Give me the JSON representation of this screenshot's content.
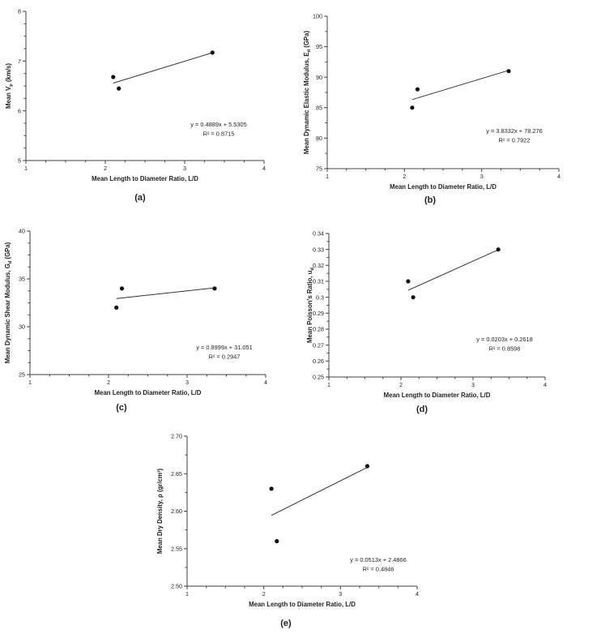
{
  "figure": {
    "background": "#ffffff",
    "axis_color": "#404040",
    "point_color": "#111111",
    "trendline_color": "#333333"
  },
  "chart_data": [
    {
      "id": "a",
      "type": "scatter",
      "panel_label": "(a)",
      "xlabel": "Mean Length to Diameter Ratio, L/D",
      "ylabel": [
        {
          "text": "Mean V"
        },
        {
          "text": "p",
          "style": "sub"
        },
        {
          "text": " (km/s)"
        }
      ],
      "xlim": [
        1,
        4
      ],
      "ylim": [
        5,
        8
      ],
      "x_ticks": {
        "major": 1,
        "minor": 0.25,
        "labels": [
          "1",
          "2",
          "3",
          "4"
        ]
      },
      "y_ticks": {
        "major": 1,
        "minor": 0.25,
        "labels": [
          "5",
          "6",
          "7",
          "8"
        ]
      },
      "points": [
        [
          2.1,
          6.68
        ],
        [
          2.17,
          6.45
        ],
        [
          3.35,
          7.17
        ]
      ],
      "trendline": {
        "slope": 0.4889,
        "intercept": 5.5305,
        "x1": 2.1,
        "x2": 3.35
      },
      "equation": "y = 0.4889x + 5.5305",
      "r2": "R² = 0.8715",
      "grid": false,
      "legend": false
    },
    {
      "id": "b",
      "type": "scatter",
      "panel_label": "(b)",
      "xlabel": "Mean Length to Diameter Ratio, L/D",
      "ylabel": [
        {
          "text": "Mean Dynamic Elastic Modulus, E"
        },
        {
          "text": "d",
          "style": "sub"
        },
        {
          "text": " (GPa)"
        }
      ],
      "xlim": [
        1,
        4
      ],
      "ylim": [
        75,
        100
      ],
      "x_ticks": {
        "major": 1,
        "minor": 0.25,
        "labels": [
          "1",
          "2",
          "3",
          "4"
        ]
      },
      "y_ticks": {
        "major": 5,
        "minor": 2.5,
        "labels": [
          "75",
          "80",
          "85",
          "90",
          "95",
          "100"
        ]
      },
      "points": [
        [
          2.1,
          85
        ],
        [
          2.17,
          88
        ],
        [
          3.35,
          91
        ]
      ],
      "trendline": {
        "slope": 3.8332,
        "intercept": 78.276,
        "x1": 2.1,
        "x2": 3.35
      },
      "equation": "y = 3.8332x + 78.276",
      "r2": "R² = 0.7922",
      "grid": false,
      "legend": false
    },
    {
      "id": "c",
      "type": "scatter",
      "panel_label": "(c)",
      "xlabel": "Mean Length to Diameter Ratio, L/D",
      "ylabel": [
        {
          "text": "Mean Dynamic Shear Modulus, G"
        },
        {
          "text": "d",
          "style": "sub"
        },
        {
          "text": " (GPa)"
        }
      ],
      "xlim": [
        1,
        4
      ],
      "ylim": [
        25,
        40
      ],
      "x_ticks": {
        "major": 1,
        "minor": 0.25,
        "labels": [
          "1",
          "2",
          "3",
          "4"
        ]
      },
      "y_ticks": {
        "major": 5,
        "minor": 1.25,
        "labels": [
          "25",
          "30",
          "35",
          "40"
        ]
      },
      "points": [
        [
          2.1,
          32
        ],
        [
          2.17,
          34
        ],
        [
          3.35,
          34
        ]
      ],
      "trendline": {
        "slope": 0.8999,
        "intercept": 31.051,
        "x1": 2.1,
        "x2": 3.35
      },
      "equation": "y = 0.8999x + 31.051",
      "r2": "R² = 0.2947",
      "grid": false,
      "legend": false
    },
    {
      "id": "d",
      "type": "scatter",
      "panel_label": "(d)",
      "xlabel": "Mean Length to Diameter Ratio, L/D",
      "ylabel": [
        {
          "text": "Mean Poisson's Ratio, u"
        },
        {
          "text": "d",
          "style": "sub"
        }
      ],
      "xlim": [
        1,
        4
      ],
      "ylim": [
        0.25,
        0.34
      ],
      "x_ticks": {
        "major": 1,
        "minor": 0.25,
        "labels": [
          "1",
          "2",
          "3",
          "4"
        ]
      },
      "y_ticks": {
        "major": 0.01,
        "minor": 0.005,
        "labels": [
          "0.25",
          "0.26",
          "0.27",
          "0.28",
          "0.29",
          "0.3",
          "0.31",
          "0.32",
          "0.33",
          "0.34"
        ]
      },
      "points": [
        [
          2.1,
          0.31
        ],
        [
          2.17,
          0.3
        ],
        [
          3.35,
          0.33
        ]
      ],
      "trendline": {
        "slope": 0.0203,
        "intercept": 0.2618,
        "x1": 2.1,
        "x2": 3.35
      },
      "equation": "y = 0.0203x + 0.2618",
      "r2": "R² = 0.8598",
      "grid": false,
      "legend": false
    },
    {
      "id": "e",
      "type": "scatter",
      "panel_label": "(e)",
      "xlabel": "Mean Length to Diameter Ratio, L/D",
      "ylabel": [
        {
          "text": "Mean Dry Density, ρ (gr/cm³)"
        }
      ],
      "xlim": [
        1,
        4
      ],
      "ylim": [
        2.5,
        2.7
      ],
      "x_ticks": {
        "major": 1,
        "minor": 0.25,
        "labels": [
          "1",
          "2",
          "3",
          "4"
        ]
      },
      "y_ticks": {
        "major": 0.05,
        "minor": 0.025,
        "labels": [
          "2.50",
          "2.55",
          "2.60",
          "2.65",
          "2.70"
        ]
      },
      "points": [
        [
          2.1,
          2.63
        ],
        [
          2.17,
          2.56
        ],
        [
          3.35,
          2.66
        ]
      ],
      "trendline": {
        "slope": 0.0513,
        "intercept": 2.4866,
        "x1": 2.1,
        "x2": 3.35
      },
      "equation": "y = 0.0513x + 2.4866",
      "r2": "R² = 0.4846",
      "grid": false,
      "legend": false
    }
  ]
}
